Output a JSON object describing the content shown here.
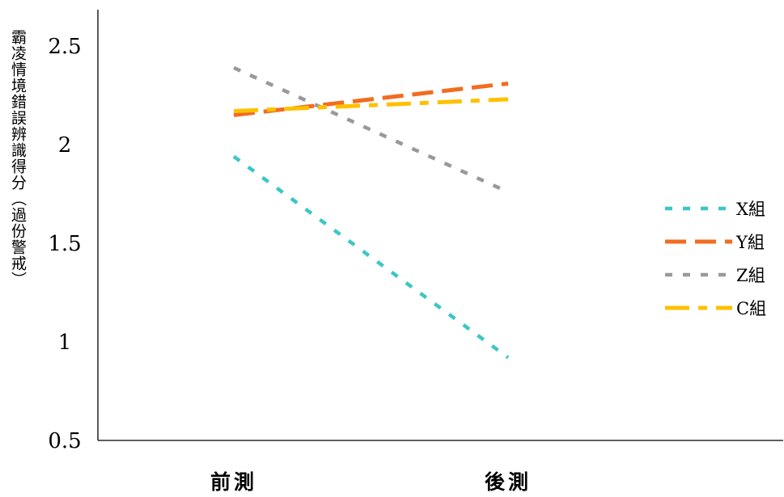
{
  "chart_data": {
    "type": "line",
    "title": "",
    "xlabel": "",
    "ylabel": "霸凌情境錯誤辨識得分（過份警戒）",
    "categories": [
      "前測",
      "後測"
    ],
    "ylim": [
      0.5,
      2.5
    ],
    "yticks": [
      "0.5",
      "1",
      "1.5",
      "2",
      "2.5"
    ],
    "ytick_values": [
      0.5,
      1,
      1.5,
      2,
      2.5
    ],
    "grid": false,
    "legend_position": "right",
    "series": [
      {
        "name": "X組",
        "values": [
          1.94,
          0.92
        ],
        "color": "#3CC6C6",
        "dash": "dots"
      },
      {
        "name": "Y組",
        "values": [
          2.15,
          2.31
        ],
        "color": "#F26C1F",
        "dash": "longdash"
      },
      {
        "name": "Z組",
        "values": [
          2.39,
          1.76
        ],
        "color": "#999999",
        "dash": "dots"
      },
      {
        "name": "C組",
        "values": [
          2.17,
          2.23
        ],
        "color": "#FFC000",
        "dash": "dashdot"
      }
    ]
  }
}
